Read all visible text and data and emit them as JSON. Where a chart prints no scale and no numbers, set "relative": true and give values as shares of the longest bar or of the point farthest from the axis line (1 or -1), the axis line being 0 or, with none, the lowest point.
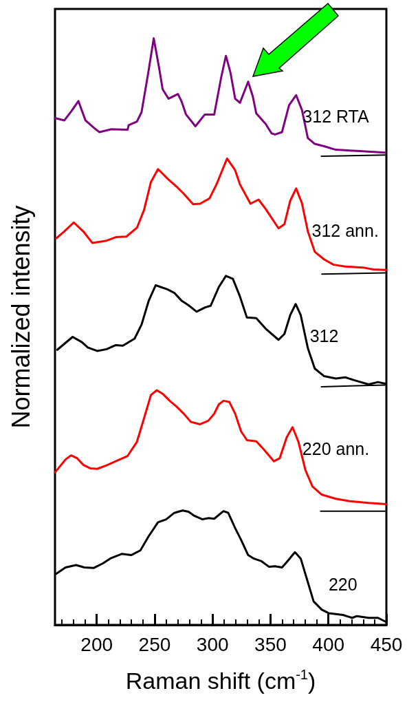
{
  "chart_data": {
    "type": "line",
    "xlabel": "Raman shift (cm$^{-1}$)",
    "ylabel": "Normalized intensity",
    "relative": true,
    "legend": false,
    "xlim": [
      164,
      450
    ],
    "xticks": [
      {
        "value": 170,
        "label": null
      },
      {
        "value": 180,
        "label": null
      },
      {
        "value": 190,
        "label": null
      },
      200,
      {
        "value": 210,
        "label": null
      },
      {
        "value": 220,
        "label": null
      },
      {
        "value": 230,
        "label": null
      },
      {
        "value": 240,
        "label": null
      },
      250,
      {
        "value": 260,
        "label": null
      },
      {
        "value": 270,
        "label": null
      },
      {
        "value": 280,
        "label": null
      },
      {
        "value": 290,
        "label": null
      },
      300,
      {
        "value": 310,
        "label": null
      },
      {
        "value": 320,
        "label": null
      },
      {
        "value": 330,
        "label": null
      },
      {
        "value": 340,
        "label": null
      },
      350,
      {
        "value": 360,
        "label": null
      },
      {
        "value": 370,
        "label": null
      },
      {
        "value": 380,
        "label": null
      },
      {
        "value": 390,
        "label": null
      },
      400,
      {
        "value": 410,
        "label": null
      },
      {
        "value": 420,
        "label": null
      },
      {
        "value": 430,
        "label": null
      },
      {
        "value": 440,
        "label": null
      },
      450
    ],
    "series": [
      {
        "name": "312 RTA",
        "color": "#800080",
        "x": [
          164.0,
          172.1,
          178.2,
          184.2,
          190.3,
          198.4,
          202.4,
          212.5,
          226.6,
          227.6,
          234.7,
          238.7,
          244.8,
          249.2,
          253.9,
          256.9,
          262.0,
          270.1,
          273.1,
          277.1,
          285.2,
          293.3,
          301.4,
          307.4,
          311.5,
          315.5,
          319.5,
          323.6,
          330.7,
          334.7,
          337.7,
          345.8,
          350.9,
          353.9,
          359.9,
          366.0,
          372.1,
          377.1,
          382.2,
          388.2,
          396.3,
          406.4,
          424.6,
          448.8
        ],
        "values": [
          0.864,
          0.86,
          0.876,
          0.893,
          0.86,
          0.846,
          0.84,
          0.845,
          0.844,
          0.852,
          0.858,
          0.874,
          0.945,
          1.0,
          0.949,
          0.913,
          0.897,
          0.905,
          0.893,
          0.87,
          0.85,
          0.87,
          0.87,
          0.933,
          0.97,
          0.941,
          0.897,
          0.89,
          0.926,
          0.901,
          0.872,
          0.854,
          0.838,
          0.836,
          0.84,
          0.886,
          0.903,
          0.878,
          0.83,
          0.82,
          0.816,
          0.81,
          0.808,
          0.805
        ]
      },
      {
        "name": "312 ann.",
        "color": "#ff0000",
        "x": [
          165.0,
          172.1,
          180.2,
          188.3,
          196.3,
          208.5,
          216.5,
          225.6,
          234.7,
          240.8,
          246.8,
          252.9,
          261.0,
          269.0,
          275.1,
          283.2,
          289.2,
          297.3,
          303.4,
          312.5,
          319.5,
          323.6,
          332.7,
          339.7,
          345.8,
          356.9,
          362.0,
          367.0,
          372.1,
          377.1,
          382.2,
          388.2,
          396.3,
          404.4,
          414.5,
          430.6,
          438.7,
          449.8
        ],
        "values": [
          0.659,
          0.671,
          0.686,
          0.671,
          0.651,
          0.655,
          0.661,
          0.662,
          0.677,
          0.707,
          0.755,
          0.777,
          0.761,
          0.747,
          0.735,
          0.717,
          0.718,
          0.727,
          0.751,
          0.795,
          0.775,
          0.751,
          0.718,
          0.725,
          0.709,
          0.676,
          0.683,
          0.723,
          0.744,
          0.719,
          0.671,
          0.636,
          0.623,
          0.614,
          0.611,
          0.609,
          0.606,
          0.605
        ]
      },
      {
        "name": "312",
        "color": "#000000",
        "x": [
          166.0,
          179.2,
          187.2,
          192.3,
          200.4,
          208.5,
          216.5,
          222.6,
          232.7,
          238.7,
          244.8,
          250.9,
          261.0,
          267.0,
          273.1,
          279.2,
          286.2,
          293.3,
          298.3,
          305.4,
          311.5,
          317.5,
          323.6,
          329.6,
          337.7,
          345.8,
          356.9,
          362.0,
          367.0,
          371.7,
          376.1,
          382.2,
          388.2,
          396.3,
          406.4,
          414.5,
          422.6,
          434.7,
          442.8,
          449.8
        ],
        "values": [
          0.469,
          0.491,
          0.482,
          0.473,
          0.467,
          0.47,
          0.477,
          0.476,
          0.488,
          0.512,
          0.552,
          0.579,
          0.572,
          0.566,
          0.553,
          0.545,
          0.534,
          0.541,
          0.544,
          0.576,
          0.595,
          0.59,
          0.56,
          0.524,
          0.523,
          0.505,
          0.486,
          0.496,
          0.528,
          0.547,
          0.528,
          0.472,
          0.437,
          0.424,
          0.42,
          0.422,
          0.417,
          0.41,
          0.414,
          0.411
        ]
      },
      {
        "name": "220 ann.",
        "color": "#ff0000",
        "x": [
          164.0,
          173.1,
          177.8,
          183.2,
          188.3,
          194.3,
          200.4,
          208.5,
          216.5,
          226.6,
          234.7,
          240.8,
          246.8,
          251.9,
          256.9,
          263.0,
          269.0,
          275.1,
          281.2,
          289.2,
          296.3,
          301.4,
          305.4,
          309.4,
          314.5,
          319.5,
          324.6,
          329.6,
          337.7,
          343.8,
          352.9,
          357.9,
          364.0,
          369.0,
          374.1,
          380.1,
          386.2,
          394.3,
          406.4,
          418.5,
          434.7,
          449.8
        ],
        "values": [
          0.26,
          0.282,
          0.289,
          0.284,
          0.273,
          0.267,
          0.266,
          0.272,
          0.279,
          0.288,
          0.312,
          0.352,
          0.392,
          0.4,
          0.394,
          0.382,
          0.372,
          0.36,
          0.346,
          0.342,
          0.348,
          0.36,
          0.376,
          0.382,
          0.38,
          0.36,
          0.33,
          0.315,
          0.313,
          0.3,
          0.279,
          0.284,
          0.32,
          0.337,
          0.312,
          0.264,
          0.236,
          0.222,
          0.215,
          0.211,
          0.208,
          0.206
        ]
      },
      {
        "name": "220",
        "color": "#000000",
        "x": [
          165.0,
          173.1,
          182.2,
          189.3,
          197.3,
          205.4,
          212.5,
          221.6,
          229.7,
          237.7,
          244.8,
          252.9,
          260.0,
          267.0,
          274.1,
          279.2,
          284.2,
          291.3,
          296.3,
          301.4,
          309.4,
          313.5,
          319.5,
          324.6,
          330.7,
          335.7,
          341.8,
          348.8,
          353.9,
          359.9,
          364.0,
          371.1,
          376.1,
          382.2,
          387.2,
          394.3,
          400.3,
          412.5,
          420.5,
          424.6,
          434.7,
          442.8,
          449.8
        ],
        "values": [
          0.087,
          0.098,
          0.102,
          0.098,
          0.097,
          0.105,
          0.114,
          0.121,
          0.119,
          0.127,
          0.151,
          0.175,
          0.18,
          0.191,
          0.195,
          0.193,
          0.186,
          0.18,
          0.182,
          0.181,
          0.194,
          0.191,
          0.165,
          0.145,
          0.119,
          0.113,
          0.109,
          0.099,
          0.1,
          0.098,
          0.107,
          0.124,
          0.113,
          0.073,
          0.04,
          0.026,
          0.02,
          0.017,
          0.012,
          0.015,
          0.012,
          0.012,
          0.005
        ]
      },
      {
        "color": "#000000",
        "x": [
          393.9,
          448.8
        ],
        "values": [
          0.799,
          0.801
        ]
      },
      {
        "color": "#000000",
        "x": [
          394.3,
          448.8
        ],
        "values": [
          0.598,
          0.6
        ]
      },
      {
        "color": "#000000",
        "x": [
          393.9,
          448.8
        ],
        "values": [
          0.406,
          0.409
        ]
      },
      {
        "color": "#000000",
        "x": [
          393.3,
          448.8
        ],
        "values": [
          0.194,
          0.194
        ]
      }
    ]
  }
}
